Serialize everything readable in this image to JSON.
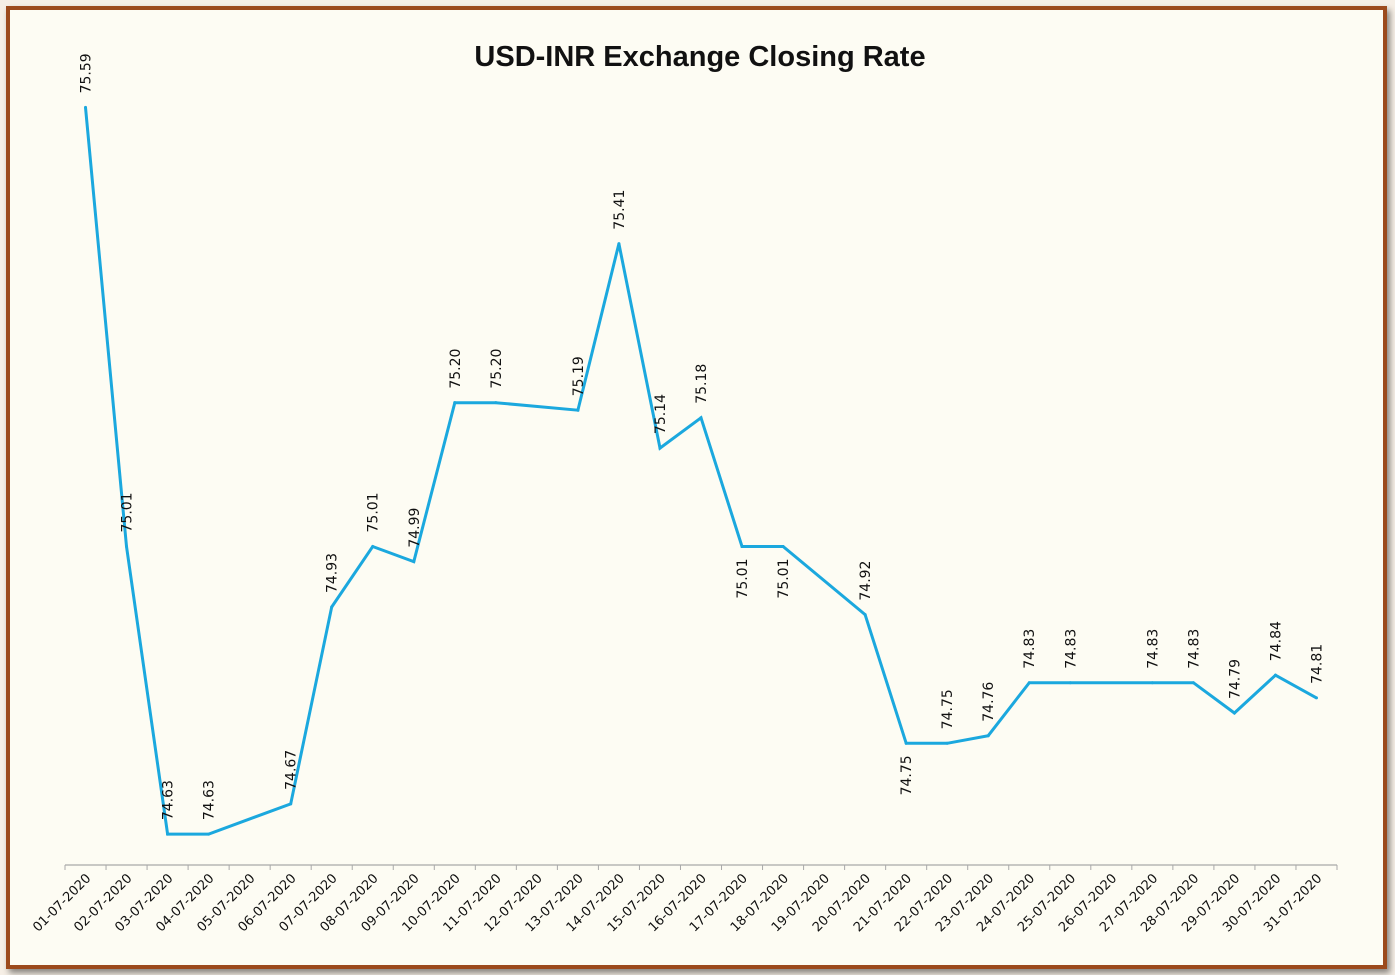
{
  "chart_data": {
    "type": "line",
    "title": "USD-INR Exchange Closing Rate",
    "xlabel": "",
    "ylabel": "",
    "categories": [
      "01-07-2020",
      "02-07-2020",
      "03-07-2020",
      "04-07-2020",
      "05-07-2020",
      "06-07-2020",
      "07-07-2020",
      "08-07-2020",
      "09-07-2020",
      "10-07-2020",
      "11-07-2020",
      "12-07-2020",
      "13-07-2020",
      "14-07-2020",
      "15-07-2020",
      "16-07-2020",
      "17-07-2020",
      "18-07-2020",
      "19-07-2020",
      "20-07-2020",
      "21-07-2020",
      "22-07-2020",
      "23-07-2020",
      "24-07-2020",
      "25-07-2020",
      "26-07-2020",
      "27-07-2020",
      "28-07-2020",
      "29-07-2020",
      "30-07-2020",
      "31-07-2020"
    ],
    "series": [
      {
        "values": [
          75.59,
          75.01,
          74.63,
          74.63,
          null,
          74.67,
          74.93,
          75.01,
          74.99,
          75.2,
          75.2,
          null,
          75.19,
          75.41,
          75.14,
          75.18,
          75.01,
          75.01,
          null,
          74.92,
          74.75,
          74.75,
          74.76,
          74.83,
          74.83,
          null,
          74.83,
          74.83,
          74.79,
          74.84,
          74.81
        ],
        "labels": [
          "75.59",
          "75.01",
          "74.63",
          "74.63",
          "",
          "74.67",
          "74.93",
          "75.01",
          "74.99",
          "75.20",
          "75.20",
          "",
          "75.19",
          "75.41",
          "75.14",
          "75.18",
          "75.01",
          "75.01",
          "",
          "74.92",
          "74.75",
          "74.75",
          "74.76",
          "74.83",
          "74.83",
          "",
          "74.83",
          "74.83",
          "74.79",
          "74.84",
          "74.81"
        ],
        "color": "#1ba8de"
      }
    ],
    "ylim": [
      74.58,
      75.65
    ],
    "grid": false,
    "legend": "none",
    "data_label_rotation": "vertical"
  }
}
